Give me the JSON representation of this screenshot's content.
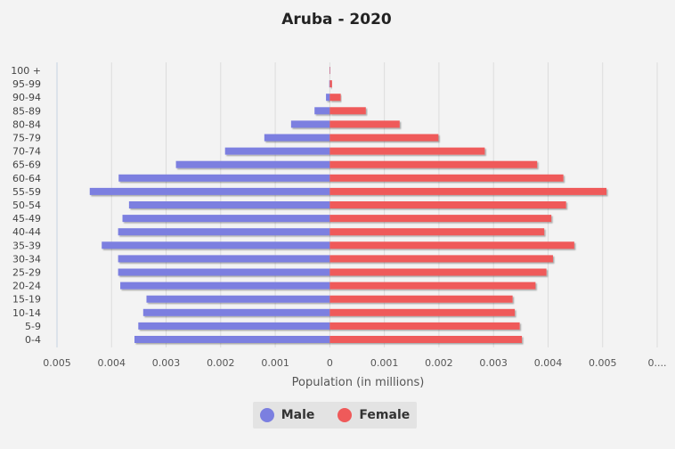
{
  "chart_data": {
    "type": "bar",
    "orientation": "horizontal-population-pyramid",
    "title": "Aruba - 2020",
    "xlabel": "Population (in millions)",
    "categories": [
      "100 +",
      "95-99",
      "90-94",
      "85-89",
      "80-84",
      "75-79",
      "70-74",
      "65-69",
      "60-64",
      "55-59",
      "50-54",
      "45-49",
      "40-44",
      "35-39",
      "30-34",
      "25-29",
      "20-24",
      "15-19",
      "10-14",
      "5-9",
      "0-4"
    ],
    "xlim": [
      -0.005,
      0.006
    ],
    "x_ticks": [
      -0.005,
      -0.004,
      -0.003,
      -0.002,
      -0.001,
      0,
      0.001,
      0.002,
      0.003,
      0.004,
      0.005,
      0.006
    ],
    "x_tick_labels": [
      "0.005",
      "0.004",
      "0.003",
      "0.002",
      "0.001",
      "0",
      "0.001",
      "0.002",
      "0.003",
      "0.004",
      "0.005",
      "0...."
    ],
    "series": [
      {
        "name": "Male",
        "color": "#7b7fe0",
        "values": [
          3e-06,
          1e-05,
          7e-05,
          0.00028,
          0.00071,
          0.0012,
          0.00192,
          0.00282,
          0.00387,
          0.0044,
          0.00368,
          0.0038,
          0.00388,
          0.00418,
          0.00388,
          0.00388,
          0.00384,
          0.00336,
          0.00342,
          0.00351,
          0.00358
        ]
      },
      {
        "name": "Female",
        "color": "#ef5a5a",
        "values": [
          3e-06,
          4e-05,
          0.0002,
          0.00066,
          0.00128,
          0.00199,
          0.00284,
          0.0038,
          0.00428,
          0.00507,
          0.00433,
          0.00406,
          0.00393,
          0.00448,
          0.00409,
          0.00397,
          0.00377,
          0.00335,
          0.00339,
          0.00348,
          0.00352
        ]
      }
    ],
    "grid": true,
    "legend_position": "bottom"
  }
}
